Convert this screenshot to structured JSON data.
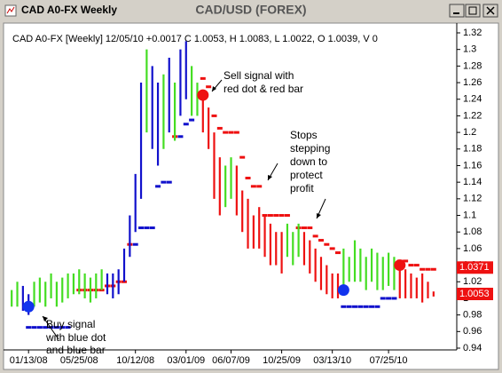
{
  "window_title": "CAD A0-FX Weekly",
  "chart_data": {
    "type": "ohlc",
    "title": "CAD/USD (FOREX)",
    "info": "CAD A0-FX [Weekly] 12/05/10 +0.0017 C 1.0053, H 1.0083, L 1.0022, O 1.0039, V 0",
    "categories": [
      null,
      null,
      null,
      "01/13/08",
      null,
      null,
      null,
      null,
      null,
      null,
      null,
      null,
      "05/25/08",
      null,
      null,
      null,
      null,
      null,
      null,
      null,
      null,
      null,
      "10/12/08",
      null,
      null,
      null,
      null,
      null,
      null,
      null,
      null,
      "03/01/09",
      null,
      null,
      null,
      null,
      null,
      null,
      null,
      "06/07/09",
      null,
      null,
      null,
      null,
      null,
      null,
      null,
      null,
      "10/25/09",
      null,
      null,
      null,
      null,
      null,
      null,
      null,
      null,
      "03/13/10",
      null,
      null,
      null,
      null,
      null,
      null,
      null,
      null,
      null,
      "07/25/10",
      null,
      null,
      null,
      null,
      null,
      null,
      null,
      null
    ],
    "high": [
      1.01,
      1.02,
      1.015,
      1.005,
      1.02,
      1.025,
      1.02,
      1.03,
      1.02,
      1.025,
      1.03,
      1.03,
      1.035,
      1.03,
      1.025,
      1.03,
      1.035,
      1.03,
      1.03,
      1.035,
      1.06,
      1.1,
      1.15,
      1.26,
      1.3,
      1.28,
      1.26,
      1.27,
      1.29,
      1.26,
      1.3,
      1.31,
      1.28,
      1.26,
      1.25,
      1.23,
      1.2,
      1.17,
      1.16,
      1.17,
      1.16,
      1.13,
      1.12,
      1.1,
      1.11,
      1.1,
      1.09,
      1.08,
      1.08,
      1.09,
      1.08,
      1.09,
      1.08,
      1.07,
      1.06,
      1.05,
      1.04,
      1.03,
      1.03,
      1.06,
      1.05,
      1.07,
      1.06,
      1.05,
      1.06,
      1.055,
      1.05,
      1.055,
      1.05,
      1.04,
      1.035,
      1.03,
      1.025,
      1.03,
      1.02,
      1.0083
    ],
    "low": [
      0.99,
      0.99,
      0.985,
      0.98,
      0.99,
      0.995,
      0.99,
      1.0,
      0.99,
      0.995,
      1.0,
      1.005,
      1.005,
      1.0,
      0.995,
      1.0,
      1.01,
      1.005,
      1.0,
      1.005,
      1.02,
      1.05,
      1.08,
      1.12,
      1.2,
      1.18,
      1.16,
      1.18,
      1.2,
      1.19,
      1.22,
      1.24,
      1.22,
      1.22,
      1.2,
      1.18,
      1.12,
      1.1,
      1.11,
      1.12,
      1.1,
      1.08,
      1.06,
      1.06,
      1.06,
      1.05,
      1.04,
      1.04,
      1.03,
      1.05,
      1.04,
      1.05,
      1.04,
      1.03,
      1.02,
      1.01,
      1.005,
      1.0,
      1.0,
      1.01,
      1.02,
      1.02,
      1.02,
      1.01,
      1.02,
      1.01,
      1.01,
      1.015,
      1.01,
      1.0,
      1.0,
      1.0,
      1.0,
      0.995,
      1.0,
      1.0022
    ],
    "bar_colors": [
      "#44dd22",
      "#44dd22",
      "#1111cc",
      "#1111cc",
      "#44dd22",
      "#44dd22",
      "#44dd22",
      "#44dd22",
      "#44dd22",
      "#44dd22",
      "#44dd22",
      "#44dd22",
      "#44dd22",
      "#44dd22",
      "#44dd22",
      "#44dd22",
      "#44dd22",
      "#1111cc",
      "#1111cc",
      "#1111cc",
      "#1111cc",
      "#1111cc",
      "#1111cc",
      "#1111cc",
      "#44dd22",
      "#1111cc",
      "#1111cc",
      "#44dd22",
      "#1111cc",
      "#44dd22",
      "#1111cc",
      "#1111cc",
      "#44dd22",
      "#44dd22",
      "#ee1111",
      "#ee1111",
      "#ee1111",
      "#ee1111",
      "#44dd22",
      "#44dd22",
      "#ee1111",
      "#ee1111",
      "#ee1111",
      "#ee1111",
      "#ee1111",
      "#ee1111",
      "#ee1111",
      "#ee1111",
      "#ee1111",
      "#44dd22",
      "#44dd22",
      "#44dd22",
      "#ee1111",
      "#ee1111",
      "#ee1111",
      "#ee1111",
      "#ee1111",
      "#ee1111",
      "#ee1111",
      "#44dd22",
      "#44dd22",
      "#44dd22",
      "#44dd22",
      "#44dd22",
      "#44dd22",
      "#44dd22",
      "#44dd22",
      "#44dd22",
      "#44dd22",
      "#ee1111",
      "#ee1111",
      "#ee1111",
      "#ee1111",
      "#ee1111",
      "#ee1111",
      "#ee1111"
    ],
    "stops": [
      null,
      null,
      null,
      0.965,
      0.965,
      0.965,
      0.965,
      0.965,
      0.965,
      0.965,
      0.965,
      null,
      1.01,
      1.01,
      1.01,
      1.01,
      1.01,
      1.015,
      1.015,
      1.02,
      1.02,
      1.065,
      1.065,
      1.085,
      1.085,
      1.085,
      1.135,
      1.14,
      1.14,
      1.195,
      1.195,
      1.21,
      1.215,
      null,
      1.265,
      1.255,
      1.22,
      1.205,
      1.2,
      1.2,
      1.2,
      1.17,
      1.145,
      1.135,
      1.135,
      1.1,
      1.1,
      1.1,
      1.1,
      1.1,
      null,
      1.085,
      1.085,
      1.085,
      1.075,
      1.07,
      1.065,
      1.06,
      1.055,
      0.99,
      0.99,
      0.99,
      0.99,
      0.99,
      0.99,
      0.99,
      1.0,
      1.0,
      1.0,
      1.045,
      1.045,
      1.04,
      1.04,
      1.035,
      1.035,
      1.035
    ],
    "stop_colors": {
      "below": "#1111cc",
      "above": "#ee1111"
    },
    "signals": [
      {
        "index": 3,
        "value": 0.99,
        "color": "#1133ee"
      },
      {
        "index": 34,
        "value": 1.245,
        "color": "#ee1111"
      },
      {
        "index": 59,
        "value": 1.01,
        "color": "#1133ee"
      },
      {
        "index": 69,
        "value": 1.04,
        "color": "#ee1111"
      }
    ],
    "price_flags": [
      1.0371,
      1.0053
    ],
    "flag_color": "#ee1111",
    "ylim": [
      0.94,
      1.32
    ],
    "yticks": [
      0.94,
      0.96,
      0.98,
      1,
      1.02,
      1.04,
      1.06,
      1.08,
      1.1,
      1.12,
      1.14,
      1.16,
      1.18,
      1.2,
      1.22,
      1.24,
      1.26,
      1.28,
      1.3,
      1.32
    ],
    "annotations": [
      [
        "Sell signal with",
        "red dot & red bar"
      ],
      [
        "Stops",
        "stepping",
        "down to",
        "protect",
        "profit"
      ],
      [
        "Buy signal",
        "with blue dot",
        "and blue bar"
      ]
    ]
  }
}
